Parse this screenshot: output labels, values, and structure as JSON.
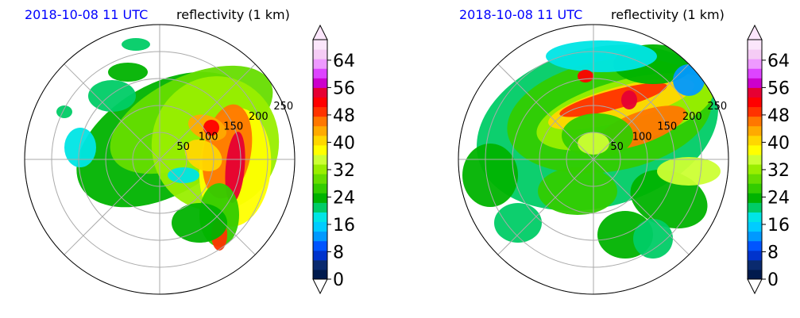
{
  "chart_data": [
    {
      "type": "heatmap",
      "title_time": "2018-10-08 11 UTC",
      "title_var": "reflectivity (1 km)",
      "range_rings": [
        "50",
        "100",
        "150",
        "200",
        "250"
      ],
      "colorbar": {
        "ticks": [
          "0",
          "8",
          "16",
          "24",
          "32",
          "40",
          "48",
          "56",
          "64"
        ],
        "range": [
          0,
          70
        ],
        "extend": "both",
        "colors": [
          "#001a4d",
          "#0a2a6e",
          "#0033cc",
          "#0055ff",
          "#0099ff",
          "#00ccff",
          "#00e5e5",
          "#00cc66",
          "#00b300",
          "#33cc00",
          "#66dd00",
          "#99ee00",
          "#ccff33",
          "#ffff00",
          "#ffd700",
          "#ffaa00",
          "#ff7700",
          "#ff3300",
          "#ff0000",
          "#e60033",
          "#cc00cc",
          "#dd44ff",
          "#ee99ff",
          "#f5ccf5",
          "#fbe6fb"
        ]
      }
    },
    {
      "type": "heatmap",
      "title_time": "2018-10-08 11 UTC",
      "title_var": "reflectivity (1 km)",
      "range_rings": [
        "50",
        "100",
        "150",
        "200",
        "250"
      ],
      "colorbar": {
        "ticks": [
          "0",
          "8",
          "16",
          "24",
          "32",
          "40",
          "48",
          "56",
          "64"
        ],
        "range": [
          0,
          70
        ],
        "extend": "both",
        "colors": [
          "#001a4d",
          "#0a2a6e",
          "#0033cc",
          "#0055ff",
          "#0099ff",
          "#00ccff",
          "#00e5e5",
          "#00cc66",
          "#00b300",
          "#33cc00",
          "#66dd00",
          "#99ee00",
          "#ccff33",
          "#ffff00",
          "#ffd700",
          "#ffaa00",
          "#ff7700",
          "#ff3300",
          "#ff0000",
          "#e60033",
          "#cc00cc",
          "#dd44ff",
          "#ee99ff",
          "#f5ccf5",
          "#fbe6fb"
        ]
      }
    }
  ]
}
